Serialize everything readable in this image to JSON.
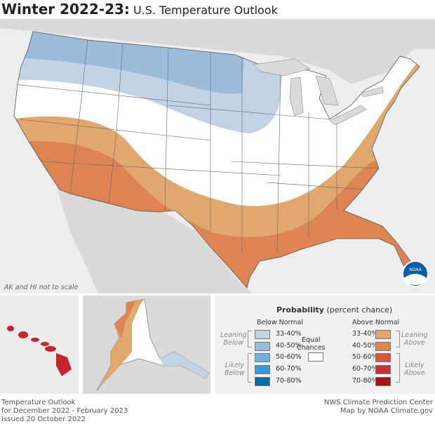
{
  "header": {
    "title_bold": "Winter 2022-23:",
    "title_rest": "U.S. Temperature Outlook"
  },
  "map": {
    "note": "AK and HI not to scale",
    "logo_text": "NOAA"
  },
  "legend": {
    "title_bold": "Probability",
    "title_rest": "(percent chance)",
    "below_header": "Below Normal",
    "above_header": "Above Normal",
    "equal_chances": [
      "Equal",
      "Chances"
    ],
    "leaning_below": [
      "Leaning",
      "Below"
    ],
    "likely_below": [
      "Likely",
      "Below"
    ],
    "leaning_above": [
      "Leaning",
      "Above"
    ],
    "likely_above": [
      "Likely",
      "Above"
    ],
    "below": [
      {
        "label": "33-40%",
        "color": "#c3d3e6"
      },
      {
        "label": "40-50%",
        "color": "#9dbcda"
      },
      {
        "label": "50-60%",
        "color": "#6fb1de"
      },
      {
        "label": "60-70%",
        "color": "#3a9ad8"
      },
      {
        "label": "70-80%",
        "color": "#0a6aa6"
      }
    ],
    "above": [
      {
        "label": "33-40%",
        "color": "#e0a76e"
      },
      {
        "label": "40-50%",
        "color": "#dd8452"
      },
      {
        "label": "50-60%",
        "color": "#d9573f"
      },
      {
        "label": "60-70%",
        "color": "#cc2c34"
      },
      {
        "label": "70-80%",
        "color": "#a81319"
      }
    ],
    "equal_color": "#ffffff"
  },
  "footer": {
    "left": [
      "Temperature Outlook",
      "for December 2022 - February 2023",
      "Issued 20 October 2022"
    ],
    "right": [
      "NWS Climate Prediction Center",
      "Map by NOAA Climate.gov"
    ]
  }
}
